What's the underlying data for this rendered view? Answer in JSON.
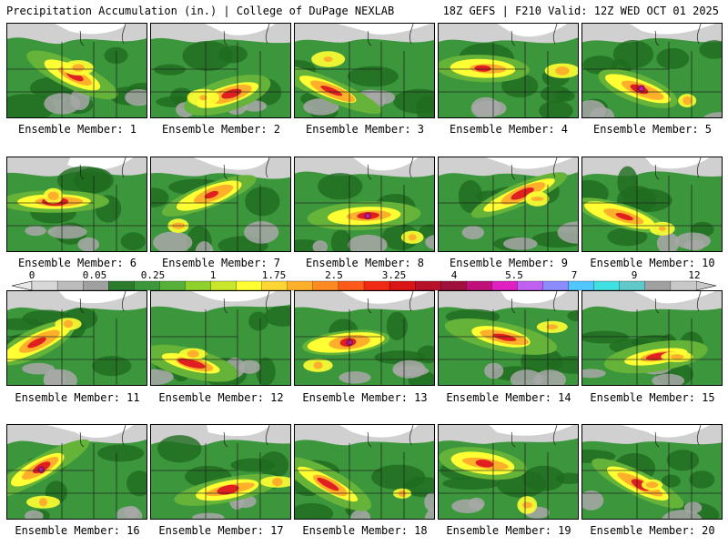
{
  "header": {
    "left": "Precipitation Accumulation (in.) | College of DuPage NEXLAB",
    "right": "18Z GEFS | F210 Valid: 12Z WED OCT 01 2025"
  },
  "panels": [
    {
      "label": "Ensemble Member: 1"
    },
    {
      "label": "Ensemble Member: 2"
    },
    {
      "label": "Ensemble Member: 3"
    },
    {
      "label": "Ensemble Member: 4"
    },
    {
      "label": "Ensemble Member: 5"
    },
    {
      "label": "Ensemble Member: 6"
    },
    {
      "label": "Ensemble Member: 7"
    },
    {
      "label": "Ensemble Member: 8"
    },
    {
      "label": "Ensemble Member: 9"
    },
    {
      "label": "Ensemble Member: 10"
    },
    {
      "label": "Ensemble Member: 11"
    },
    {
      "label": "Ensemble Member: 12"
    },
    {
      "label": "Ensemble Member: 13"
    },
    {
      "label": "Ensemble Member: 14"
    },
    {
      "label": "Ensemble Member: 15"
    },
    {
      "label": "Ensemble Member: 16"
    },
    {
      "label": "Ensemble Member: 17"
    },
    {
      "label": "Ensemble Member: 18"
    },
    {
      "label": "Ensemble Member: 19"
    },
    {
      "label": "Ensemble Member: 20"
    }
  ],
  "colorbar": {
    "tick_labels": [
      "0",
      "0.05",
      "0.25",
      "1",
      "1.75",
      "2.5",
      "3.25",
      "4",
      "5.5",
      "7",
      "9",
      "12"
    ],
    "colors": [
      "#d8d8d8",
      "#bcbcbc",
      "#a0a0a0",
      "#2c7a2c",
      "#3c963c",
      "#56b03a",
      "#8fd12c",
      "#c8e62a",
      "#ffff33",
      "#ffd633",
      "#ffb02a",
      "#ff8a22",
      "#ff5a1a",
      "#f02a14",
      "#d81414",
      "#b80f2a",
      "#a0103c",
      "#c0107a",
      "#e020c0",
      "#c060f0",
      "#8c8cff",
      "#50c8ff",
      "#40e0e0",
      "#60c8c8",
      "#a0a0a0",
      "#c8c8c8"
    ]
  },
  "palette": {
    "land": "#3a8c3a",
    "white_area": "#ffffff",
    "gray_light": "#d0d0d0",
    "gray_mid": "#a8a8a8",
    "green_dark": "#1f6b1f",
    "green_mid": "#3c963c",
    "green_light": "#66b33a",
    "yellow": "#ffff33",
    "orange": "#ffb02a",
    "red": "#e02020",
    "darkred": "#a0103c",
    "magenta": "#c020c0"
  }
}
